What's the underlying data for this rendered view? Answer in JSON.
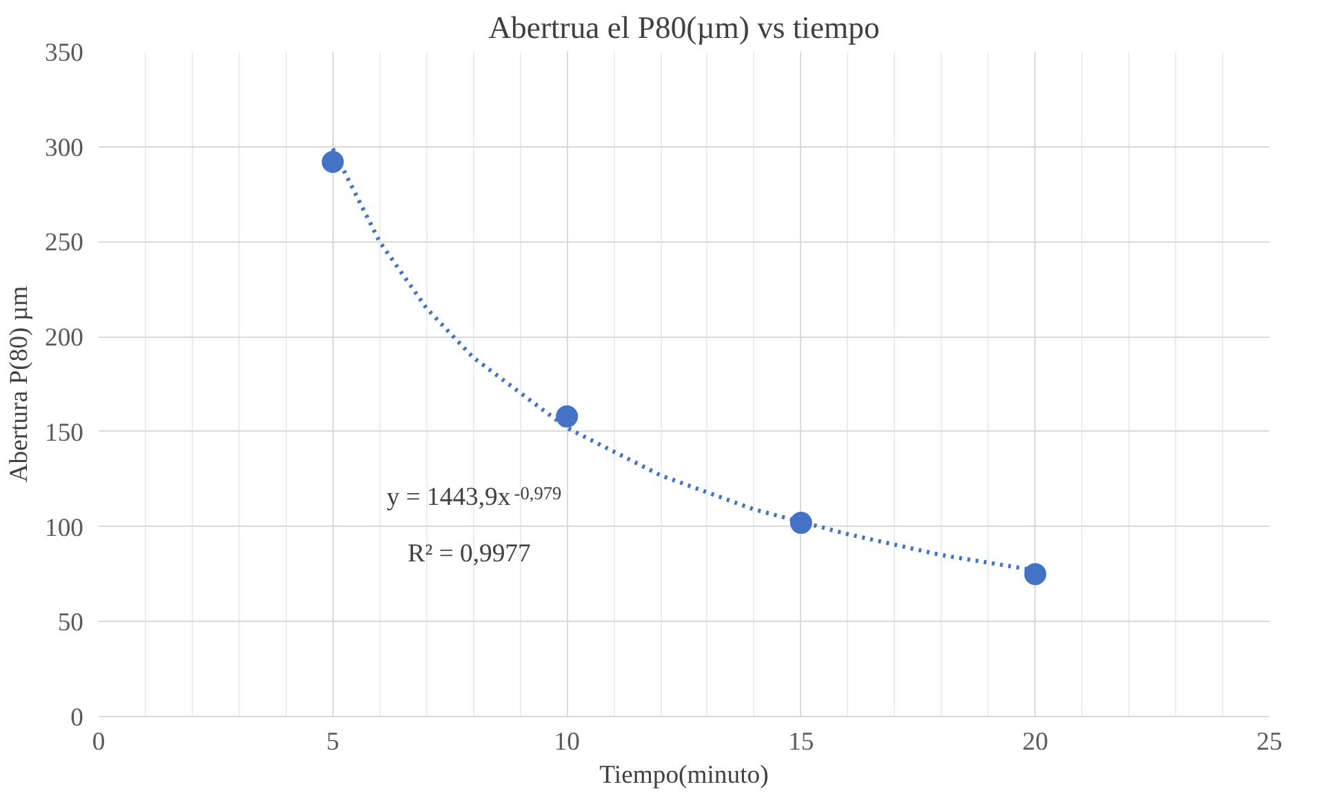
{
  "chart_data": {
    "type": "scatter",
    "title": "Abertrua el P80(µm) vs tiempo",
    "xlabel": "Tiempo(minuto)",
    "ylabel": "Abertura P(80) µm",
    "xlim": [
      0,
      25
    ],
    "xticks": [
      0,
      5,
      10,
      15,
      20,
      25
    ],
    "ylim": [
      0,
      350
    ],
    "yticks": [
      0,
      50,
      100,
      150,
      200,
      250,
      300,
      350
    ],
    "grid": true,
    "marker": "circle",
    "series": [
      {
        "color": "#4472c4",
        "x": [
          5,
          10,
          15,
          20
        ],
        "values": [
          292,
          158,
          102,
          75
        ]
      },
      {
        "type": "line",
        "color": "#4472c4",
        "line_style": "dotted",
        "marker": "none",
        "x": [
          5,
          6,
          7,
          8,
          10,
          12,
          14,
          16,
          18,
          20
        ],
        "values": [
          299,
          250,
          215,
          189,
          152,
          127,
          109,
          96,
          85,
          77
        ]
      }
    ],
    "annotations": [
      "y = 1443,9x$^{-0,979}$",
      "R² = 0,9977"
    ]
  }
}
